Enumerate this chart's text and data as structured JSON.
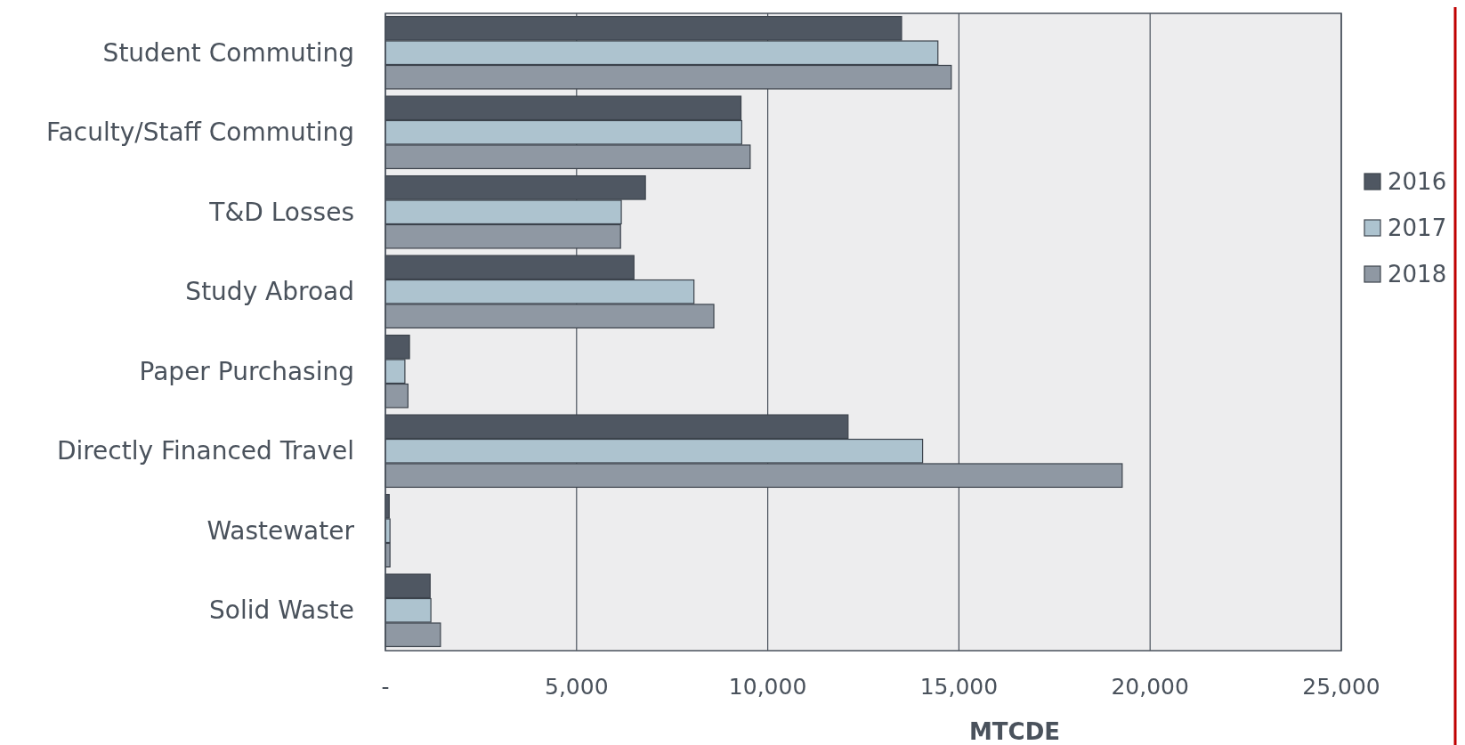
{
  "chart_data": {
    "type": "bar",
    "orientation": "horizontal",
    "xlabel": "MTCDE",
    "categories": [
      "Student Commuting",
      "Faculty/Staff Commuting",
      "T&D Losses",
      "Study Abroad",
      "Paper Purchasing",
      "Directly Financed Travel",
      "Wastewater",
      "Solid Waste"
    ],
    "series": [
      {
        "name": "2016",
        "color": "#4f5762",
        "values": [
          13500,
          9300,
          6800,
          6500,
          630,
          12100,
          100,
          1170
        ]
      },
      {
        "name": "2017",
        "color": "#adc3cf",
        "values": [
          14450,
          9320,
          6170,
          8070,
          510,
          14050,
          120,
          1190
        ]
      },
      {
        "name": "2018",
        "color": "#8f98a3",
        "values": [
          14800,
          9540,
          6150,
          8590,
          590,
          19270,
          120,
          1440
        ]
      }
    ],
    "xlim": [
      0,
      25000
    ],
    "xticks": [
      {
        "value": 0,
        "label": "-"
      },
      {
        "value": 5000,
        "label": "5,000"
      },
      {
        "value": 10000,
        "label": "10,000"
      },
      {
        "value": 15000,
        "label": "15,000"
      },
      {
        "value": 20000,
        "label": "20,000"
      },
      {
        "value": 25000,
        "label": "25,000"
      }
    ],
    "grid": "x",
    "legend": "right"
  }
}
